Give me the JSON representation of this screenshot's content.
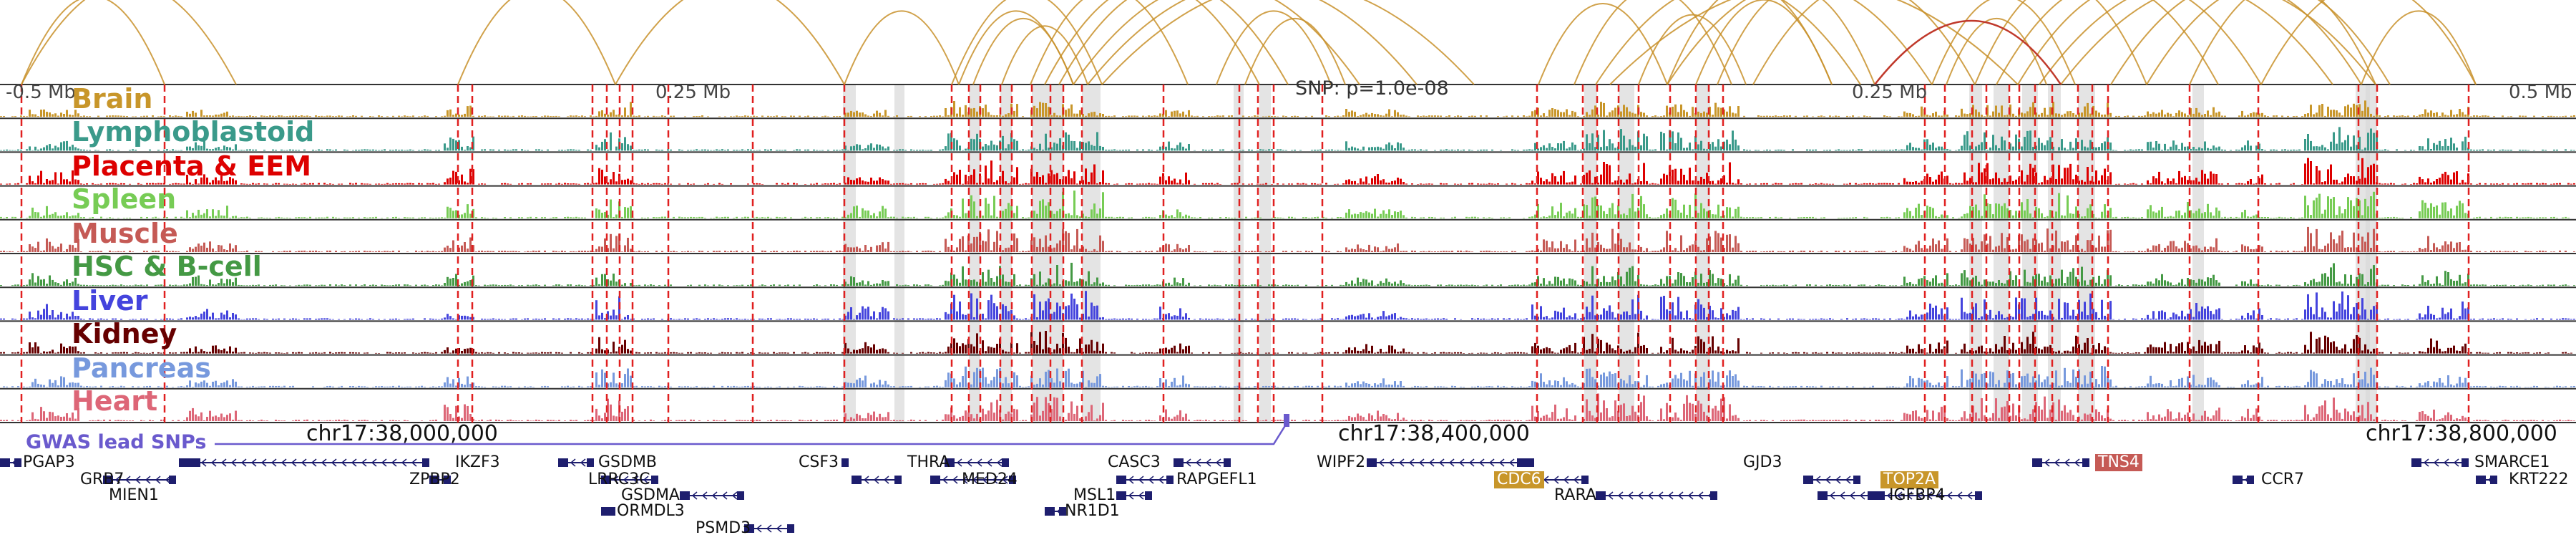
{
  "scale": {
    "left_label": "-0.5 Mb",
    "mid_left_label": "0.25 Mb",
    "mid_right_label": "0.25 Mb",
    "right_label": "0.5 Mb"
  },
  "snp_label": "SNP: p=1.0e-08",
  "gwas_label": "GWAS lead SNPs",
  "coordinates": [
    "chr17:38,000,000",
    "chr17:38,400,000",
    "chr17:38,800,000"
  ],
  "colors": {
    "arc": "#c8902a",
    "arc_highlight": "#c0392b",
    "dashed_line": "#e02020",
    "highlight_band": "#d9d9d9",
    "gene": "#1e1e6e",
    "gwas": "#6a5acd"
  },
  "tracks": [
    {
      "name": "Brain",
      "color": "#c8962a"
    },
    {
      "name": "Lymphoblastoid",
      "color": "#3a9a8a"
    },
    {
      "name": "Placenta & EEM",
      "color": "#dd0000"
    },
    {
      "name": "Spleen",
      "color": "#77cc55"
    },
    {
      "name": "Muscle",
      "color": "#c55a55"
    },
    {
      "name": "HSC & B-cell",
      "color": "#449944"
    },
    {
      "name": "Liver",
      "color": "#4444dd"
    },
    {
      "name": "Kidney",
      "color": "#660000"
    },
    {
      "name": "Pancreas",
      "color": "#7799dd"
    },
    {
      "name": "Heart",
      "color": "#dd6677"
    }
  ],
  "genes": [
    {
      "name": "PGAP3",
      "highlight": false
    },
    {
      "name": "GRB7",
      "highlight": false
    },
    {
      "name": "MIEN1",
      "highlight": false
    },
    {
      "name": "IKZF3",
      "highlight": false
    },
    {
      "name": "ZPBP2",
      "highlight": false
    },
    {
      "name": "GSDMB",
      "highlight": false
    },
    {
      "name": "LRRC3C",
      "highlight": false
    },
    {
      "name": "GSDMA",
      "highlight": false
    },
    {
      "name": "ORMDL3",
      "highlight": false
    },
    {
      "name": "PSMD3",
      "highlight": false
    },
    {
      "name": "CSF3",
      "highlight": false
    },
    {
      "name": "THRA",
      "highlight": false
    },
    {
      "name": "MED24",
      "highlight": false
    },
    {
      "name": "CASC3",
      "highlight": false
    },
    {
      "name": "RAPGEFL1",
      "highlight": false
    },
    {
      "name": "MSL1",
      "highlight": false
    },
    {
      "name": "NR1D1",
      "highlight": false
    },
    {
      "name": "WIPF2",
      "highlight": false
    },
    {
      "name": "CDC6",
      "highlight": true,
      "hl_color": "#c8962a"
    },
    {
      "name": "RARA",
      "highlight": false
    },
    {
      "name": "GJD3",
      "highlight": false
    },
    {
      "name": "TOP2A",
      "highlight": true,
      "hl_color": "#c8962a"
    },
    {
      "name": "IGFBP4",
      "highlight": false
    },
    {
      "name": "TNS4",
      "highlight": true,
      "hl_color": "#c55a55"
    },
    {
      "name": "CCR7",
      "highlight": false
    },
    {
      "name": "SMARCE1",
      "highlight": false
    },
    {
      "name": "KRT222",
      "highlight": false
    }
  ]
}
